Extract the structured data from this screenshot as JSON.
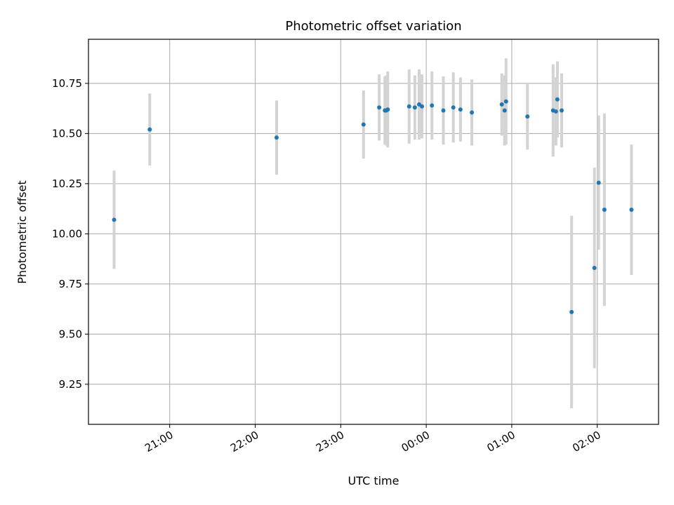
{
  "chart_data": {
    "type": "scatter",
    "title": "Photometric offset variation",
    "xlabel": "UTC time",
    "ylabel": "Photometric offset",
    "grid": true,
    "x_unit": "time of day (HH:MM, UTC)",
    "xlim": [
      "20:03",
      "02:43"
    ],
    "ylim": [
      9.05,
      10.97
    ],
    "x_ticks": [
      "21:00",
      "22:00",
      "23:00",
      "00:00",
      "01:00",
      "02:00"
    ],
    "y_ticks": [
      "9.25",
      "9.50",
      "9.75",
      "10.00",
      "10.25",
      "10.50",
      "10.75"
    ],
    "colors": {
      "marker": "#1f77b4",
      "errorbar": "#d3d3d3",
      "grid": "#b0b0b0"
    },
    "points": [
      {
        "x": "20:21",
        "y": 10.07,
        "err": 0.245
      },
      {
        "x": "20:46",
        "y": 10.52,
        "err": 0.18
      },
      {
        "x": "22:15",
        "y": 10.48,
        "err": 0.185
      },
      {
        "x": "23:16",
        "y": 10.545,
        "err": 0.17
      },
      {
        "x": "23:27",
        "y": 10.63,
        "err": 0.165
      },
      {
        "x": "23:31",
        "y": 10.615,
        "err": 0.17
      },
      {
        "x": "23:32",
        "y": 10.615,
        "err": 0.175
      },
      {
        "x": "23:33",
        "y": 10.62,
        "err": 0.19
      },
      {
        "x": "23:48",
        "y": 10.635,
        "err": 0.185
      },
      {
        "x": "23:52",
        "y": 10.63,
        "err": 0.16
      },
      {
        "x": "23:55",
        "y": 10.645,
        "err": 0.175
      },
      {
        "x": "23:57",
        "y": 10.635,
        "err": 0.16
      },
      {
        "x": "00:04",
        "y": 10.64,
        "err": 0.17
      },
      {
        "x": "00:12",
        "y": 10.615,
        "err": 0.17
      },
      {
        "x": "00:19",
        "y": 10.63,
        "err": 0.175
      },
      {
        "x": "00:24",
        "y": 10.62,
        "err": 0.16
      },
      {
        "x": "00:32",
        "y": 10.605,
        "err": 0.165
      },
      {
        "x": "00:53",
        "y": 10.645,
        "err": 0.155
      },
      {
        "x": "00:55",
        "y": 10.615,
        "err": 0.175
      },
      {
        "x": "00:56",
        "y": 10.66,
        "err": 0.215
      },
      {
        "x": "01:11",
        "y": 10.585,
        "err": 0.165
      },
      {
        "x": "01:29",
        "y": 10.615,
        "err": 0.23
      },
      {
        "x": "01:31",
        "y": 10.61,
        "err": 0.17
      },
      {
        "x": "01:32",
        "y": 10.67,
        "err": 0.19
      },
      {
        "x": "01:35",
        "y": 10.615,
        "err": 0.185
      },
      {
        "x": "01:42",
        "y": 9.61,
        "err": 0.48
      },
      {
        "x": "01:58",
        "y": 9.83,
        "err": 0.5
      },
      {
        "x": "02:01",
        "y": 10.255,
        "err": 0.335
      },
      {
        "x": "02:05",
        "y": 10.12,
        "err": 0.48
      },
      {
        "x": "02:24",
        "y": 10.12,
        "err": 0.325
      }
    ]
  }
}
